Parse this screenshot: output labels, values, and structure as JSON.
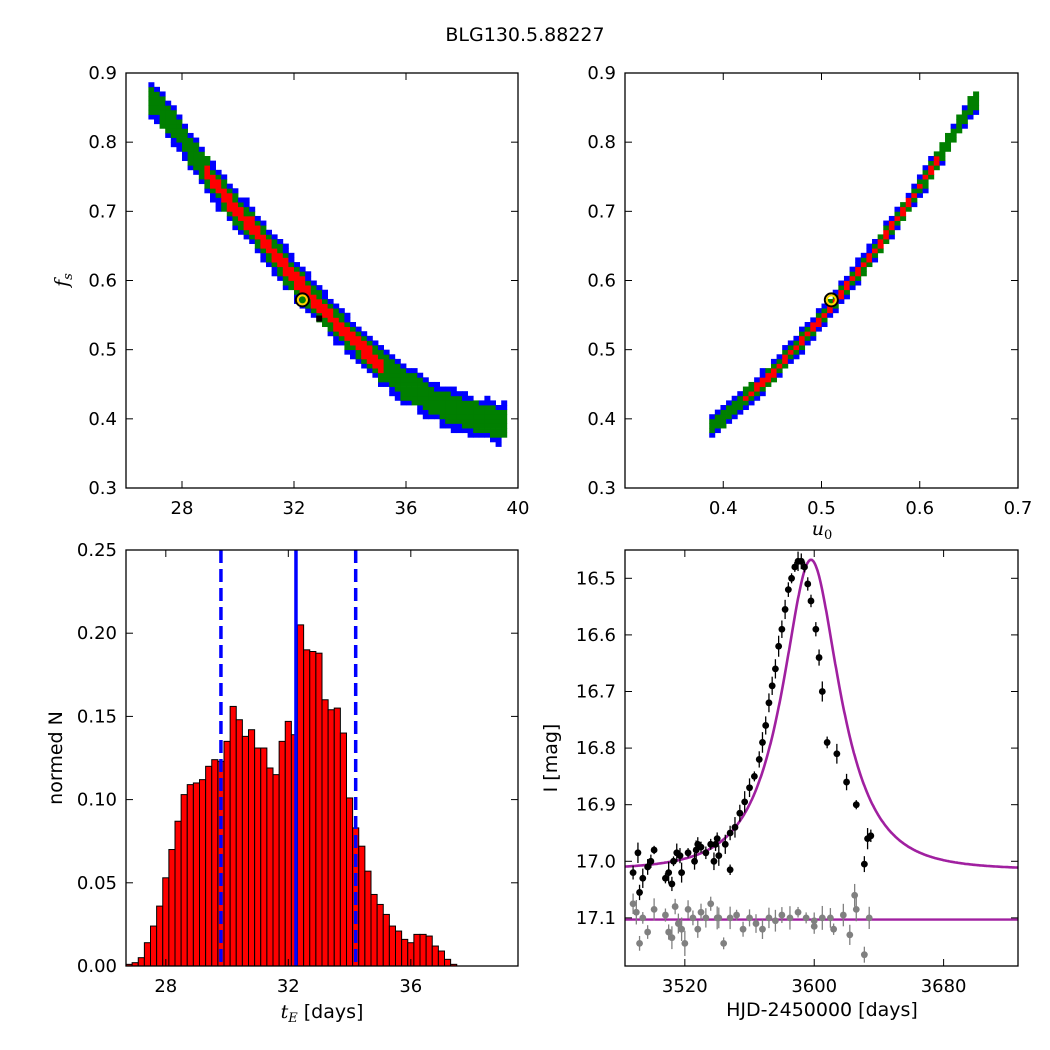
{
  "title": "BLG130.5.88227",
  "colors": {
    "c95": "#0000ff",
    "c68": "#007f00",
    "c39": "#ff0000",
    "best_marker": "#ffd700",
    "model": "#a020a0",
    "data": "#000000",
    "resid": "#808080",
    "hist_bar": "#ff0000",
    "hist_line": "#0000ff"
  },
  "chart_data": [
    {
      "type": "heatmap",
      "id": "tE-fs",
      "xlabel": "",
      "ylabel": "f_s",
      "xlim": [
        26,
        40
      ],
      "ylim": [
        0.3,
        0.9
      ],
      "xticks": [
        "28",
        "32",
        "36",
        "40"
      ],
      "yticks": [
        "0.3",
        "0.4",
        "0.5",
        "0.6",
        "0.7",
        "0.8",
        "0.9"
      ],
      "ridge": [
        [
          27.0,
          0.86
        ],
        [
          28.0,
          0.81
        ],
        [
          29.0,
          0.75
        ],
        [
          30.0,
          0.7
        ],
        [
          31.0,
          0.655
        ],
        [
          32.0,
          0.605
        ],
        [
          33.0,
          0.56
        ],
        [
          34.0,
          0.52
        ],
        [
          35.0,
          0.48
        ],
        [
          36.0,
          0.45
        ],
        [
          37.0,
          0.425
        ],
        [
          38.0,
          0.41
        ],
        [
          39.3,
          0.395
        ]
      ],
      "contour_widths": {
        "c95": 0.028,
        "c68": 0.02,
        "c39": 0.011
      },
      "core_range": [
        28.8,
        35.2
      ],
      "best_fit": [
        32.3,
        0.572
      ],
      "min_chi2": [
        32.9,
        0.545
      ]
    },
    {
      "type": "heatmap",
      "id": "u0-fs",
      "xlabel": "u_0",
      "ylabel": "",
      "xlim": [
        0.3,
        0.7
      ],
      "ylim": [
        0.3,
        0.9
      ],
      "xticks": [
        "0.4",
        "0.5",
        "0.6",
        "0.7"
      ],
      "yticks": [
        "0.3",
        "0.4",
        "0.5",
        "0.6",
        "0.7",
        "0.8",
        "0.9"
      ],
      "ridge": [
        [
          0.39,
          0.39
        ],
        [
          0.45,
          0.465
        ],
        [
          0.5,
          0.545
        ],
        [
          0.55,
          0.635
        ],
        [
          0.6,
          0.735
        ],
        [
          0.655,
          0.86
        ]
      ],
      "contour_widths": {
        "c95": 0.016,
        "c68": 0.011,
        "c39": 0.005
      },
      "core_range": [
        0.42,
        0.62
      ],
      "best_fit": [
        0.51,
        0.572
      ]
    },
    {
      "type": "bar",
      "id": "tE-hist",
      "xlabel": "t_E [days]",
      "ylabel": "normed N",
      "xlim": [
        26.7,
        39.5
      ],
      "ylim": [
        0,
        0.25
      ],
      "xticks": [
        "28",
        "32",
        "36"
      ],
      "yticks": [
        "0.00",
        "0.05",
        "0.10",
        "0.15",
        "0.20",
        "0.25"
      ],
      "bin_start": 26.7,
      "bin_width": 0.2,
      "values": [
        0.001,
        0.002,
        0.005,
        0.014,
        0.024,
        0.036,
        0.053,
        0.07,
        0.087,
        0.103,
        0.109,
        0.11,
        0.112,
        0.12,
        0.124,
        0.123,
        0.135,
        0.156,
        0.148,
        0.138,
        0.142,
        0.131,
        0.131,
        0.119,
        0.115,
        0.135,
        0.147,
        0.139,
        0.205,
        0.19,
        0.189,
        0.188,
        0.16,
        0.154,
        0.155,
        0.14,
        0.101,
        0.083,
        0.072,
        0.057,
        0.043,
        0.037,
        0.031,
        0.024,
        0.021,
        0.016,
        0.014,
        0.019,
        0.019,
        0.018,
        0.012,
        0.009,
        0.004,
        0.001
      ],
      "median": 32.25,
      "lower": 29.8,
      "upper": 34.2
    },
    {
      "type": "scatter",
      "id": "lightcurve",
      "xlabel": "HJD-2450000 [days]",
      "ylabel": "I [mag]",
      "xlim": [
        3483,
        3726
      ],
      "ylim": [
        17.185,
        16.45
      ],
      "xticks": [
        "3520",
        "3600",
        "3680"
      ],
      "yticks": [
        "16.5",
        "16.6",
        "16.7",
        "16.8",
        "16.9",
        "17.0",
        "17.1"
      ],
      "model": {
        "t0": 3598,
        "u0": 0.51,
        "tE": 32.3,
        "fs": 0.572,
        "I_base": 17.015
      },
      "resid_baseline": 17.103,
      "points": [
        [
          3488,
          17.02
        ],
        [
          3491,
          16.985
        ],
        [
          3492,
          17.055
        ],
        [
          3494,
          17.03
        ],
        [
          3497,
          17.01
        ],
        [
          3499,
          17.0
        ],
        [
          3501,
          16.98
        ],
        [
          3508,
          17.03
        ],
        [
          3510,
          17.02
        ],
        [
          3512,
          17.04
        ],
        [
          3513,
          17.0
        ],
        [
          3515,
          16.985
        ],
        [
          3517,
          16.99
        ],
        [
          3518,
          17.02
        ],
        [
          3522,
          16.985
        ],
        [
          3526,
          17.0
        ],
        [
          3527,
          16.98
        ],
        [
          3528,
          16.97
        ],
        [
          3530,
          16.975
        ],
        [
          3533,
          16.985
        ],
        [
          3536,
          16.97
        ],
        [
          3538,
          17.0
        ],
        [
          3541,
          16.99
        ],
        [
          3545,
          16.97
        ],
        [
          3548,
          16.95
        ],
        [
          3551,
          16.94
        ],
        [
          3554,
          16.915
        ],
        [
          3557,
          16.895
        ],
        [
          3560,
          16.87
        ],
        [
          3563,
          16.85
        ],
        [
          3566,
          16.82
        ],
        [
          3568,
          16.79
        ],
        [
          3570,
          16.76
        ],
        [
          3572,
          16.72
        ],
        [
          3574,
          16.69
        ],
        [
          3576,
          16.66
        ],
        [
          3578,
          16.62
        ],
        [
          3580,
          16.59
        ],
        [
          3582,
          16.555
        ],
        [
          3584,
          16.52
        ],
        [
          3586,
          16.5
        ],
        [
          3588,
          16.48
        ],
        [
          3590,
          16.47
        ],
        [
          3592,
          16.47
        ],
        [
          3594,
          16.48
        ],
        [
          3596,
          16.51
        ],
        [
          3598,
          16.54
        ],
        [
          3601,
          16.59
        ],
        [
          3603,
          16.64
        ],
        [
          3605,
          16.7
        ],
        [
          3608,
          16.79
        ],
        [
          3614,
          16.81
        ],
        [
          3620,
          16.86
        ],
        [
          3626,
          16.9
        ],
        [
          3631,
          17.005
        ],
        [
          3633,
          16.96
        ],
        [
          3635,
          16.955
        ],
        [
          3548,
          17.015
        ],
        [
          3540,
          16.96
        ],
        [
          3539,
          16.97
        ]
      ],
      "resid_points": [
        [
          3488,
          17.075
        ],
        [
          3490,
          17.09
        ],
        [
          3492,
          17.145
        ],
        [
          3494,
          17.1
        ],
        [
          3497,
          17.125
        ],
        [
          3501,
          17.085
        ],
        [
          3508,
          17.095
        ],
        [
          3510,
          17.125
        ],
        [
          3512,
          17.135
        ],
        [
          3514,
          17.08
        ],
        [
          3516,
          17.11
        ],
        [
          3518,
          17.12
        ],
        [
          3520,
          17.145
        ],
        [
          3522,
          17.085
        ],
        [
          3525,
          17.1
        ],
        [
          3528,
          17.12
        ],
        [
          3530,
          17.09
        ],
        [
          3533,
          17.1
        ],
        [
          3536,
          17.075
        ],
        [
          3540,
          17.1
        ],
        [
          3544,
          17.145
        ],
        [
          3548,
          17.1
        ],
        [
          3552,
          17.095
        ],
        [
          3556,
          17.12
        ],
        [
          3560,
          17.1
        ],
        [
          3564,
          17.11
        ],
        [
          3568,
          17.12
        ],
        [
          3572,
          17.1
        ],
        [
          3576,
          17.105
        ],
        [
          3580,
          17.095
        ],
        [
          3585,
          17.1
        ],
        [
          3590,
          17.09
        ],
        [
          3595,
          17.1
        ],
        [
          3600,
          17.105
        ],
        [
          3605,
          17.1
        ],
        [
          3612,
          17.12
        ],
        [
          3618,
          17.095
        ],
        [
          3622,
          17.13
        ],
        [
          3626,
          17.085
        ],
        [
          3631,
          17.165
        ],
        [
          3634,
          17.1
        ],
        [
          3625,
          17.06
        ],
        [
          3610,
          17.1
        ],
        [
          3541,
          17.1
        ],
        [
          3600,
          17.115
        ]
      ]
    }
  ]
}
